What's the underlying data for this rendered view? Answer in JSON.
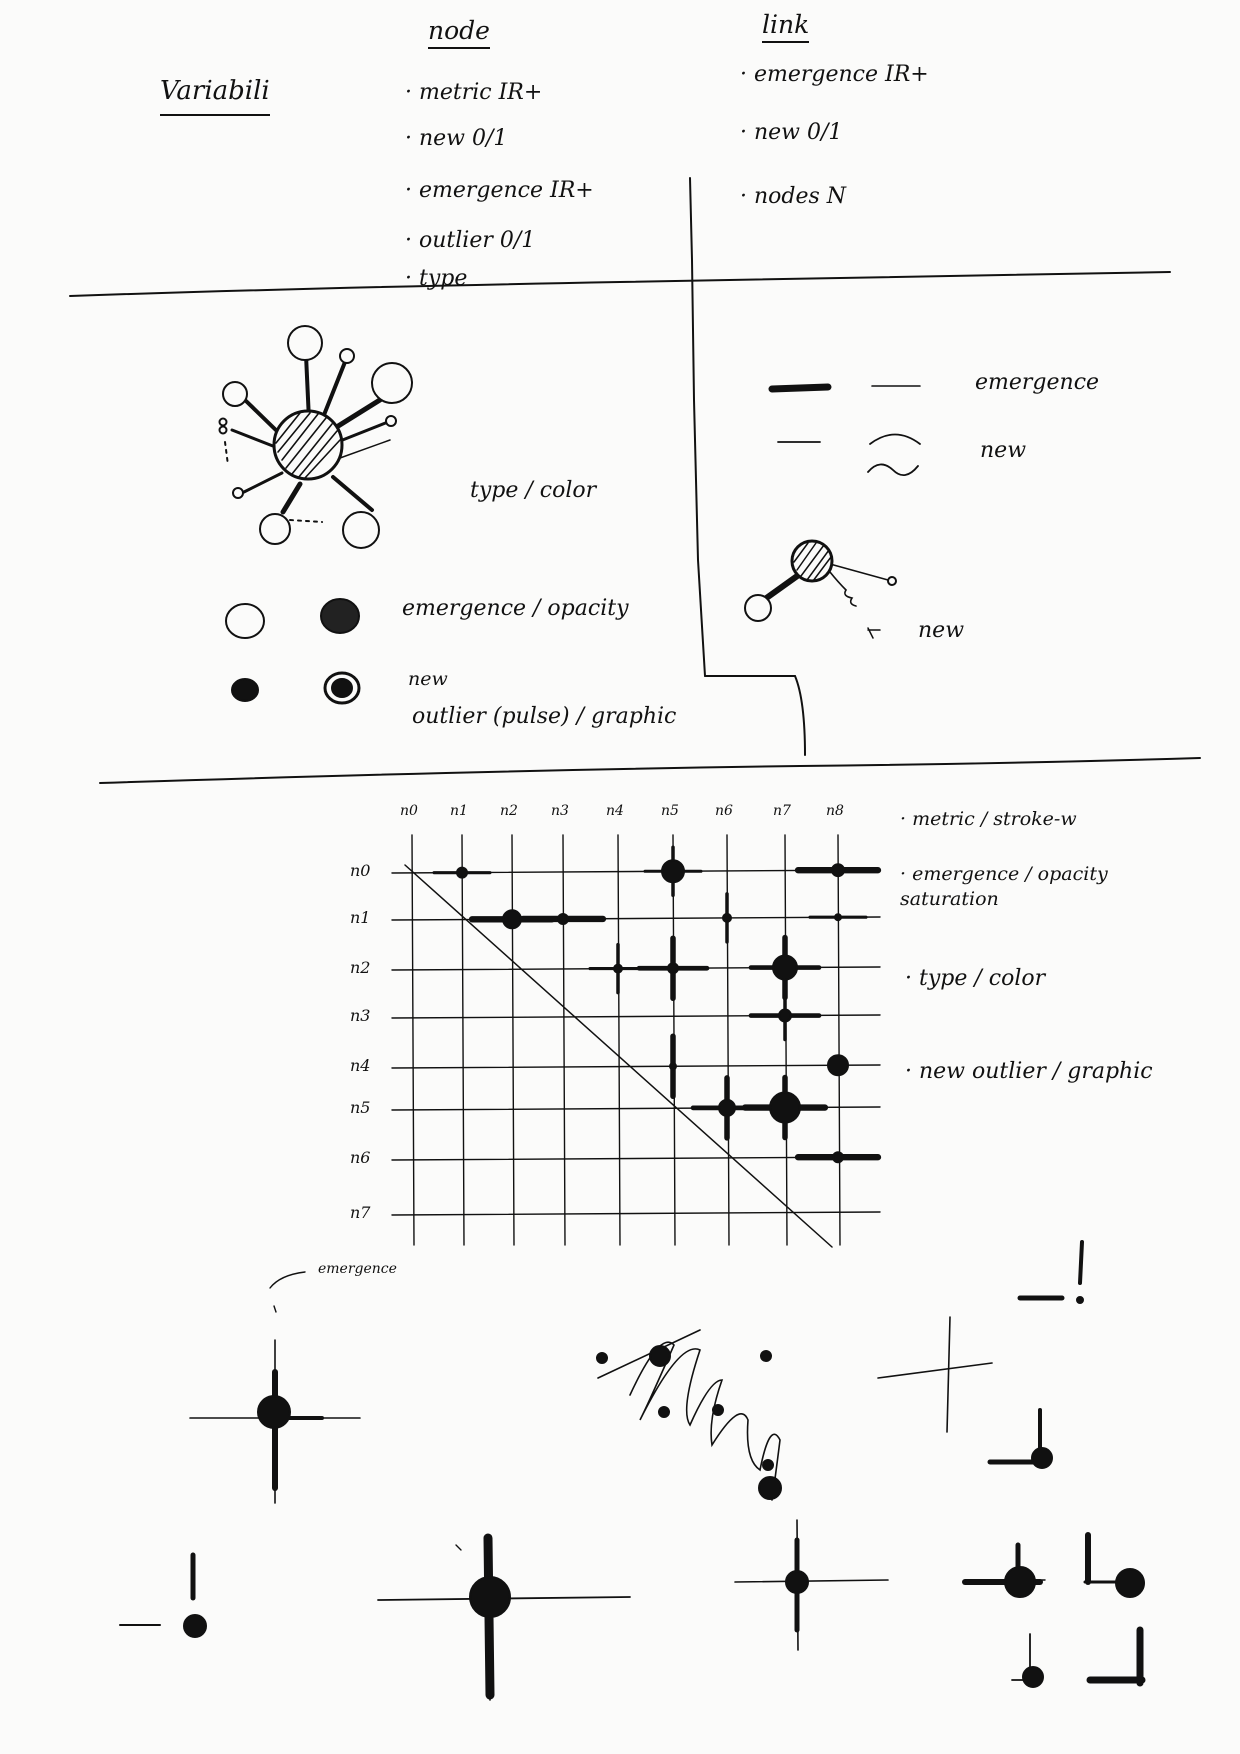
{
  "header": {
    "title": "Variabili",
    "node_heading": "node",
    "link_heading": "link"
  },
  "node_variables": [
    "· metric IR+",
    "· new 0/1",
    "· emergence IR+",
    "· outlier 0/1",
    "· type"
  ],
  "link_variables": [
    "· emergence IR+",
    "· new 0/1",
    "· nodes N"
  ],
  "node_section": {
    "type_label": "type / color",
    "emergence_label": "emergence / opacity",
    "new_label": "new",
    "outlier_label": "outlier (pulse) / graphic"
  },
  "link_section": {
    "emergence_label": "emergence",
    "new_label": "new",
    "new_pointer_label": "new"
  },
  "matrix": {
    "col_labels": [
      "n0",
      "n1",
      "n2",
      "n3",
      "n4",
      "n5",
      "n6",
      "n7",
      "n8"
    ],
    "row_labels": [
      "n0",
      "n1",
      "n2",
      "n3",
      "n4",
      "n5",
      "n6",
      "n7"
    ],
    "legend": [
      "· metric / stroke-w",
      "· emergence / opacity saturation",
      "· type / color",
      "· new outlier / graphic"
    ]
  },
  "glyphs": {
    "emergence_note": "emergence"
  }
}
